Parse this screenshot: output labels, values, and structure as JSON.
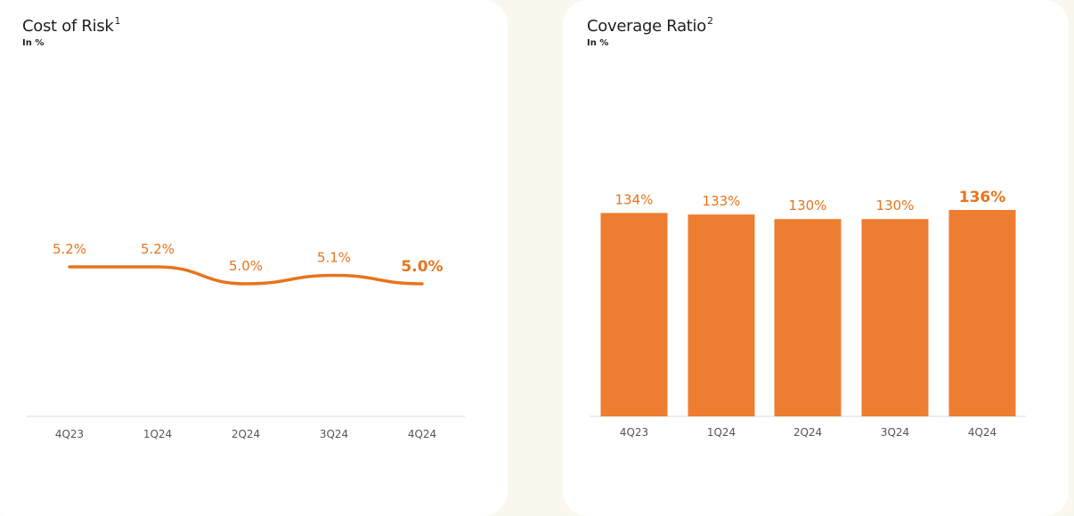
{
  "colors": {
    "accent": "#e8741c",
    "bar": "#ed7d31",
    "axis": "#d9d9d9",
    "background": "#faf7ef"
  },
  "left_card": {
    "title": "Cost of Risk",
    "title_sup": "1",
    "subtitle": "In %"
  },
  "right_card": {
    "title": "Coverage Ratio",
    "title_sup": "2",
    "subtitle": "In %"
  },
  "chart_data": [
    {
      "type": "line",
      "title": "Cost of Risk",
      "subtitle": "In %",
      "categories": [
        "4Q23",
        "1Q24",
        "2Q24",
        "3Q24",
        "4Q24"
      ],
      "values": [
        5.2,
        5.2,
        5.0,
        5.1,
        5.0
      ],
      "labels": [
        "5.2%",
        "5.2%",
        "5.0%",
        "5.1%",
        "5.0%"
      ],
      "highlight_last": true,
      "ylim": [
        0,
        10
      ],
      "grid": false
    },
    {
      "type": "bar",
      "title": "Coverage Ratio",
      "subtitle": "In %",
      "categories": [
        "4Q23",
        "1Q24",
        "2Q24",
        "3Q24",
        "4Q24"
      ],
      "values": [
        134,
        133,
        130,
        130,
        136
      ],
      "labels": [
        "134%",
        "133%",
        "130%",
        "130%",
        "136%"
      ],
      "highlight_last": true,
      "ylim": [
        0,
        136
      ],
      "grid": false
    }
  ]
}
